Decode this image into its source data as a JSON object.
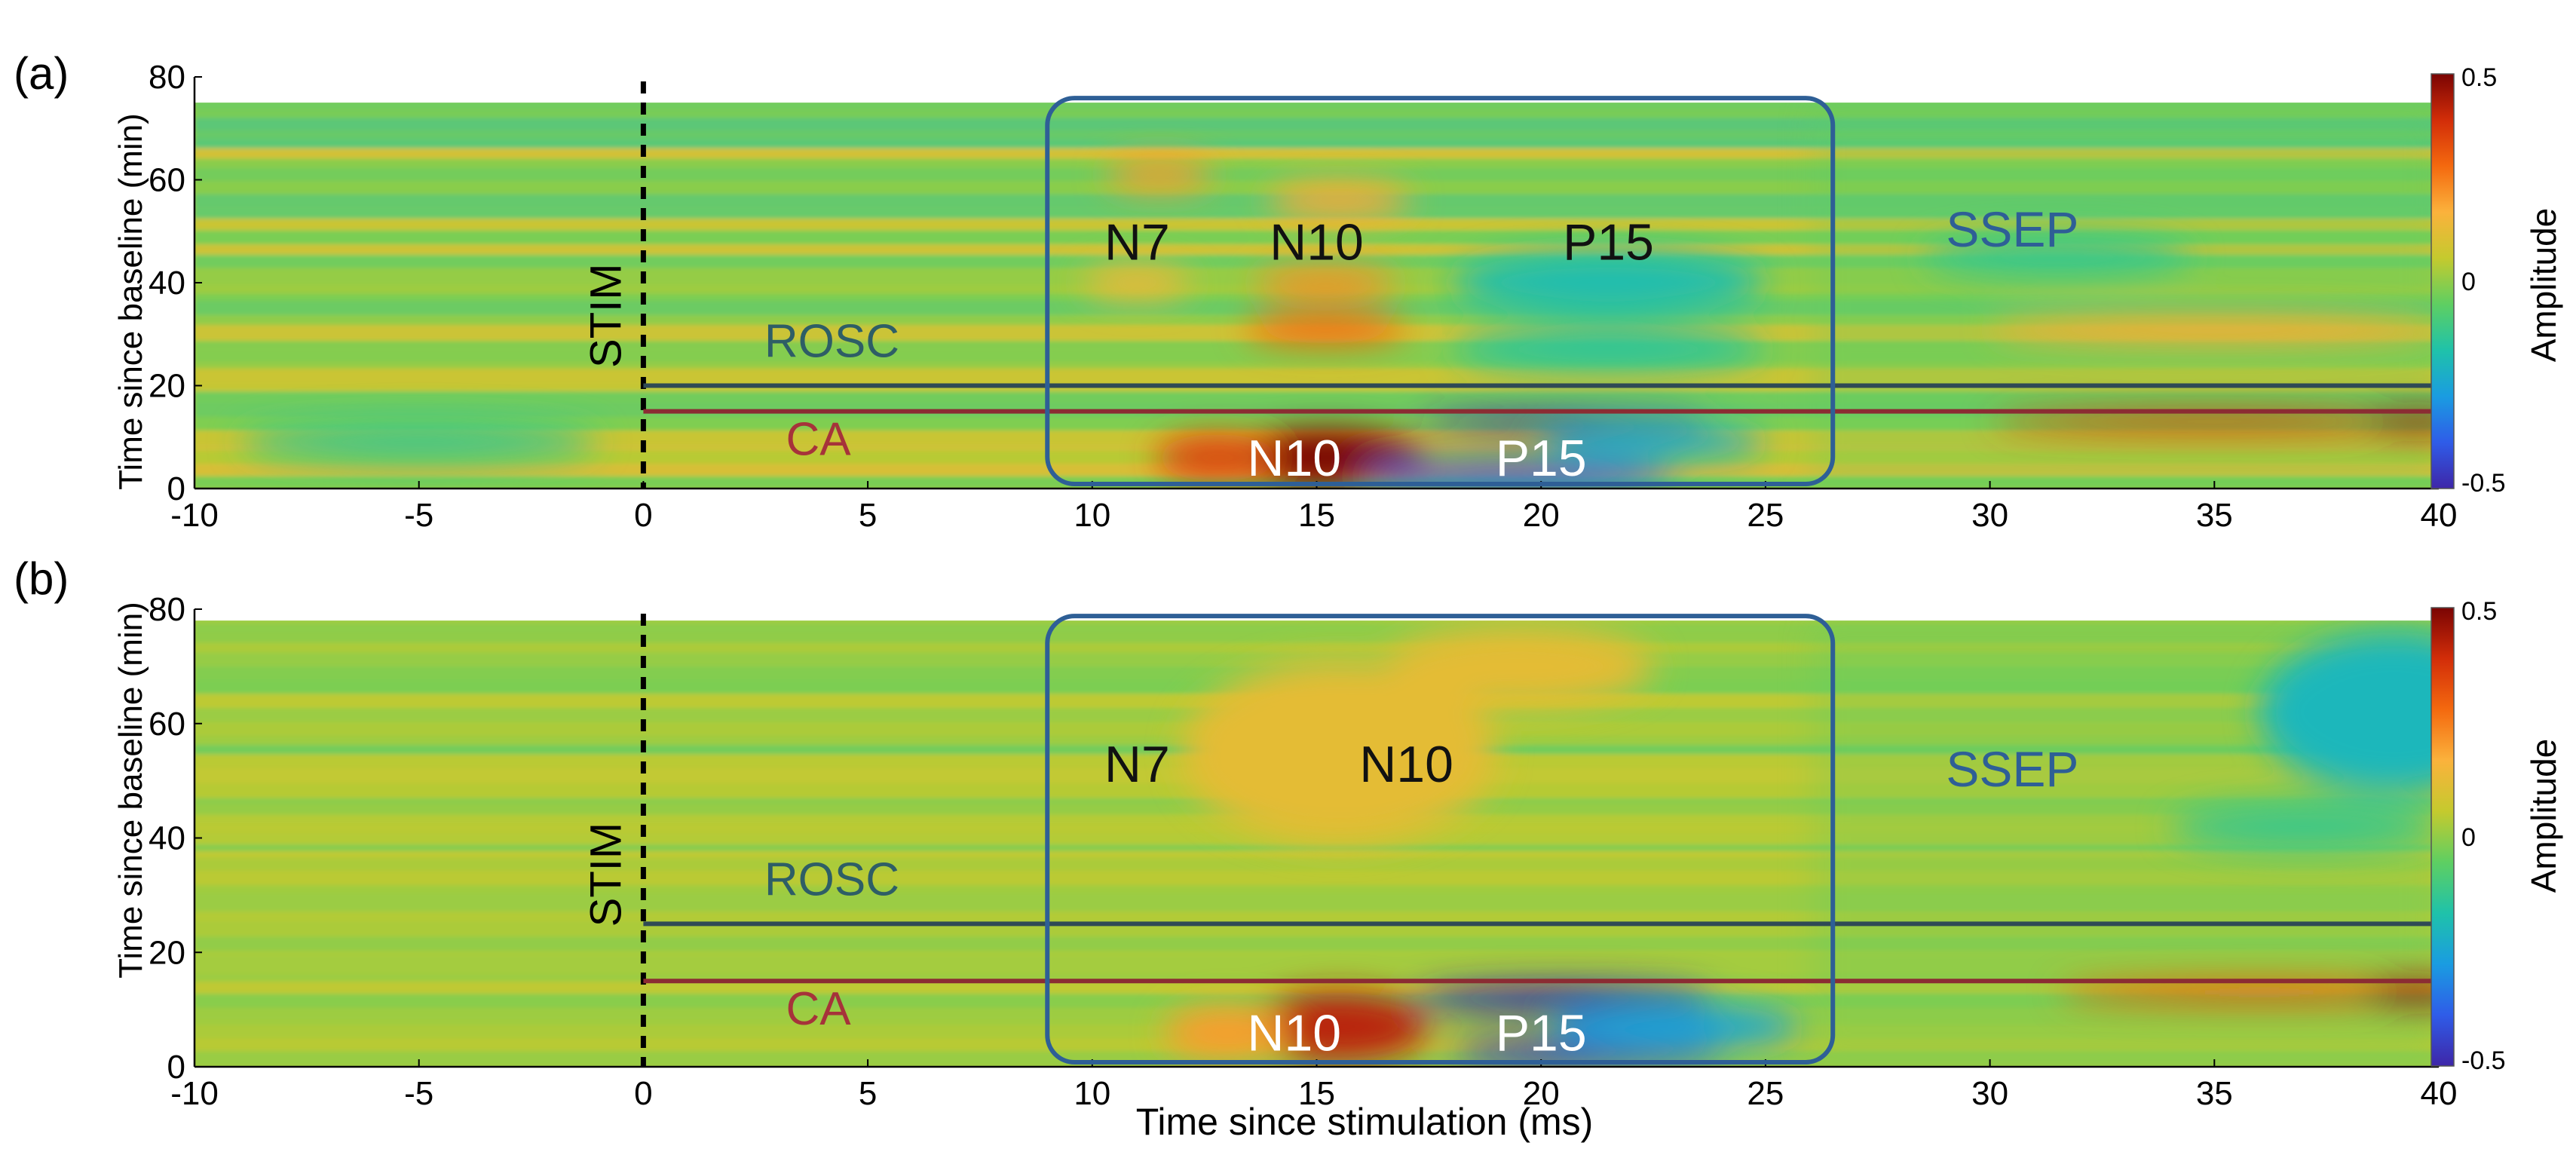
{
  "figure": {
    "xlabel": "Time since stimulation (ms)",
    "colorscale": [
      "#3e26a8",
      "#2f5ce8",
      "#1a9ce1",
      "#1fc2aa",
      "#5ecf62",
      "#c5ca2e",
      "#fbb23c",
      "#f4690f",
      "#d22d09",
      "#7a0403"
    ],
    "colors": {
      "background_field": "#8fd65e",
      "rosc_line": "#2f4a55",
      "ca_line": "#8b2c33",
      "box": "#2e5f96",
      "stim_line": "#000000",
      "label_dark": "#111111",
      "label_light": "#ffffff",
      "rosc_text": "#2e5e66",
      "ca_text": "#a6333a",
      "ssep_text": "#2e5f96"
    }
  },
  "chart_data": [
    {
      "type": "heatmap",
      "panel_label": "(a)",
      "ylabel": "Time since baseline (min)",
      "xlim": [
        -10,
        40
      ],
      "ylim": [
        0,
        80
      ],
      "data_ylim": [
        0,
        75
      ],
      "xticks": [
        -10,
        -5,
        0,
        5,
        10,
        15,
        20,
        25,
        30,
        35,
        40
      ],
      "yticks": [
        0,
        20,
        40,
        60,
        80
      ],
      "colorbar": {
        "label": "Amplitude",
        "min": -0.5,
        "max": 0.5,
        "ticks": [
          {
            "value": 0.5,
            "label": "0.5"
          },
          {
            "value": 0,
            "label": "0"
          },
          {
            "value": -0.5,
            "label": "-0.5"
          }
        ]
      },
      "events": [
        {
          "name": "STIM",
          "type": "vertical",
          "x": 0,
          "color": "#000000"
        },
        {
          "name": "ROSC",
          "type": "horizontal",
          "y": 20,
          "color": "#2f4a55"
        },
        {
          "name": "CA",
          "type": "horizontal",
          "y": 15,
          "color": "#8b2c33"
        }
      ],
      "box": {
        "label": "SSEP",
        "x": [
          9,
          26.5
        ],
        "y": [
          0,
          75
        ]
      },
      "peak_labels": [
        {
          "text": "N7",
          "x": 11,
          "y": 48,
          "color": "#111111"
        },
        {
          "text": "N10",
          "x": 15,
          "y": 48,
          "color": "#111111"
        },
        {
          "text": "P15",
          "x": 21.5,
          "y": 48,
          "color": "#111111"
        },
        {
          "text": "N10",
          "x": 14.5,
          "y": 6,
          "color": "#ffffff"
        },
        {
          "text": "P15",
          "x": 20,
          "y": 6,
          "color": "#ffffff"
        }
      ],
      "blobs": [
        {
          "x": 15.2,
          "y": 6,
          "rx": 2.2,
          "ry": 5.5,
          "value": 0.5
        },
        {
          "x": 12.8,
          "y": 6,
          "rx": 1.4,
          "ry": 4.5,
          "value": 0.35
        },
        {
          "x": 20.5,
          "y": 13,
          "rx": 3.2,
          "ry": 1.8,
          "value": -0.55
        },
        {
          "x": 19.5,
          "y": 2.5,
          "rx": 3.5,
          "ry": 2.8,
          "value": -0.4
        },
        {
          "x": 22.5,
          "y": 9,
          "rx": 2.5,
          "ry": 3.5,
          "value": -0.22
        },
        {
          "x": 11.5,
          "y": 61,
          "rx": 1.2,
          "ry": 3,
          "value": 0.2
        },
        {
          "x": 15.5,
          "y": 56,
          "rx": 1.6,
          "ry": 3.5,
          "value": 0.18
        },
        {
          "x": 15.2,
          "y": 40,
          "rx": 1.6,
          "ry": 3,
          "value": 0.22
        },
        {
          "x": 15.2,
          "y": 31,
          "rx": 1.8,
          "ry": 3,
          "value": 0.28
        },
        {
          "x": 11,
          "y": 40,
          "rx": 1.2,
          "ry": 3,
          "value": 0.15
        },
        {
          "x": 21.5,
          "y": 40,
          "rx": 3.5,
          "ry": 6,
          "value": -0.18
        },
        {
          "x": 21.5,
          "y": 27,
          "rx": 3.5,
          "ry": 4,
          "value": -0.15
        },
        {
          "x": 35,
          "y": 31,
          "rx": 5,
          "ry": 2.5,
          "value": 0.18
        },
        {
          "x": 35,
          "y": 13,
          "rx": 5,
          "ry": 2,
          "value": 0.35
        },
        {
          "x": 39.5,
          "y": 13,
          "rx": 1.2,
          "ry": 2,
          "value": 0.45
        },
        {
          "x": -5,
          "y": 9,
          "rx": 4,
          "ry": 4,
          "value": -0.12
        },
        {
          "x": 31.5,
          "y": 45,
          "rx": 3,
          "ry": 4,
          "value": -0.12
        }
      ]
    },
    {
      "type": "heatmap",
      "panel_label": "(b)",
      "ylabel": "Time since baseline (min)",
      "xlim": [
        -10,
        40
      ],
      "ylim": [
        0,
        80
      ],
      "data_ylim": [
        0,
        78
      ],
      "xticks": [
        -10,
        -5,
        0,
        5,
        10,
        15,
        20,
        25,
        30,
        35,
        40
      ],
      "yticks": [
        0,
        20,
        40,
        60,
        80
      ],
      "colorbar": {
        "label": "Amplitude",
        "min": -0.5,
        "max": 0.5,
        "ticks": [
          {
            "value": 0.5,
            "label": "0.5"
          },
          {
            "value": 0,
            "label": "0"
          },
          {
            "value": -0.5,
            "label": "-0.5"
          }
        ]
      },
      "events": [
        {
          "name": "STIM",
          "type": "vertical",
          "x": 0,
          "color": "#000000"
        },
        {
          "name": "ROSC",
          "type": "horizontal",
          "y": 25,
          "color": "#2f4a55"
        },
        {
          "name": "CA",
          "type": "horizontal",
          "y": 15,
          "color": "#8b2c33"
        }
      ],
      "box": {
        "label": "SSEP",
        "x": [
          9,
          26.5
        ],
        "y": [
          0,
          78
        ]
      },
      "peak_labels": [
        {
          "text": "N7",
          "x": 11,
          "y": 53,
          "color": "#111111"
        },
        {
          "text": "N10",
          "x": 17,
          "y": 53,
          "color": "#111111"
        },
        {
          "text": "N10",
          "x": 14.5,
          "y": 6,
          "color": "#ffffff"
        },
        {
          "text": "P15",
          "x": 20,
          "y": 6,
          "color": "#ffffff"
        }
      ],
      "blobs": [
        {
          "x": 15.5,
          "y": 7,
          "rx": 2.0,
          "ry": 6,
          "value": 0.42
        },
        {
          "x": 13,
          "y": 6,
          "rx": 1.4,
          "ry": 4.5,
          "value": 0.2
        },
        {
          "x": 20.5,
          "y": 12,
          "rx": 3.3,
          "ry": 2.5,
          "value": -0.55
        },
        {
          "x": 21,
          "y": 2.5,
          "rx": 3.0,
          "ry": 2.5,
          "value": -0.45
        },
        {
          "x": 23,
          "y": 7,
          "rx": 2.8,
          "ry": 4,
          "value": -0.25
        },
        {
          "x": 15.5,
          "y": 55,
          "rx": 3.5,
          "ry": 16,
          "value": 0.12
        },
        {
          "x": 19.5,
          "y": 70,
          "rx": 3,
          "ry": 7,
          "value": 0.12
        },
        {
          "x": 36,
          "y": 13,
          "rx": 4.5,
          "ry": 2,
          "value": 0.3
        },
        {
          "x": 39.5,
          "y": 13,
          "rx": 1.2,
          "ry": 2,
          "value": 0.45
        },
        {
          "x": 39,
          "y": 62,
          "rx": 3,
          "ry": 14,
          "value": -0.2
        },
        {
          "x": 37,
          "y": 42,
          "rx": 3,
          "ry": 4,
          "value": -0.12
        }
      ]
    }
  ]
}
